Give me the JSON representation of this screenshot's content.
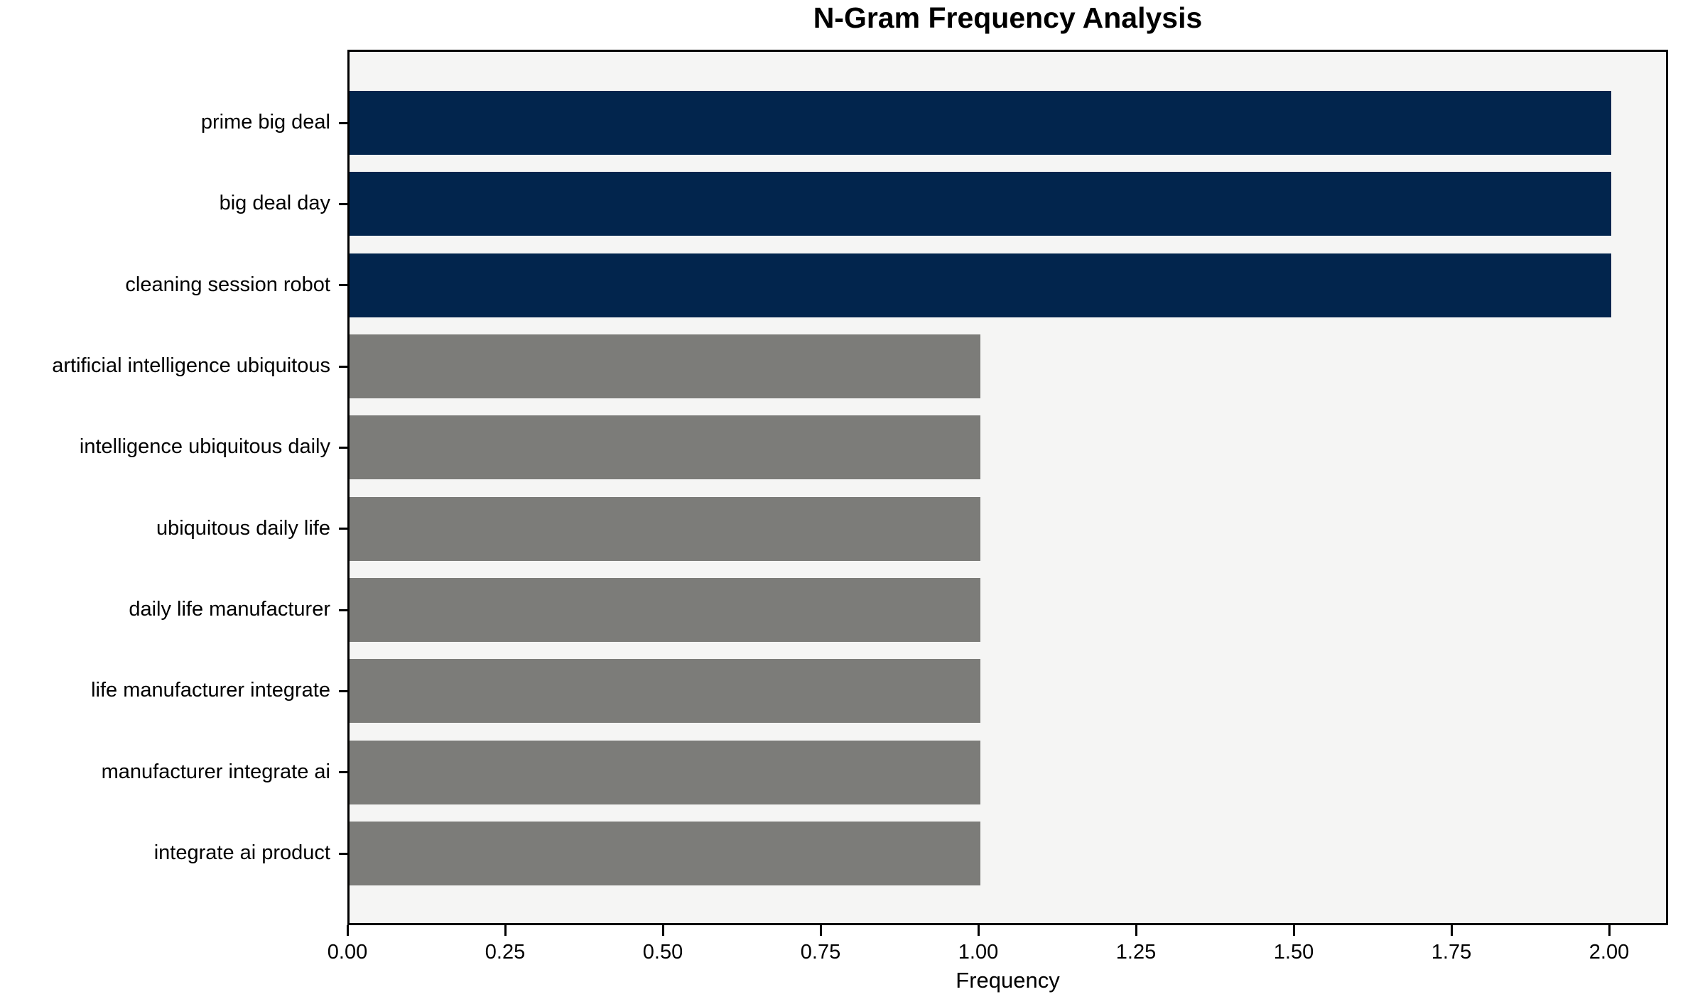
{
  "chart_data": {
    "type": "bar",
    "orientation": "horizontal",
    "title": "N-Gram Frequency Analysis",
    "xlabel": "Frequency",
    "ylabel": "",
    "categories": [
      "prime big deal",
      "big deal day",
      "cleaning session robot",
      "artificial intelligence ubiquitous",
      "intelligence ubiquitous daily",
      "ubiquitous daily life",
      "daily life manufacturer",
      "life manufacturer integrate",
      "manufacturer integrate ai",
      "integrate ai product"
    ],
    "values": [
      2,
      2,
      2,
      1,
      1,
      1,
      1,
      1,
      1,
      1
    ],
    "bar_colors": [
      "#02254d",
      "#02254d",
      "#02254d",
      "#7c7c79",
      "#7c7c79",
      "#7c7c79",
      "#7c7c79",
      "#7c7c79",
      "#7c7c79",
      "#7c7c79"
    ],
    "xlim": [
      0,
      2.09
    ],
    "xticks": [
      "0.00",
      "0.25",
      "0.50",
      "0.75",
      "1.00",
      "1.25",
      "1.50",
      "1.75",
      "2.00"
    ],
    "grid": false,
    "legend": null,
    "colors": {
      "highlight": "#02254d",
      "default": "#7c7c79",
      "plot_background": "#f5f5f4",
      "spine": "#000000",
      "text": "#000000"
    }
  }
}
